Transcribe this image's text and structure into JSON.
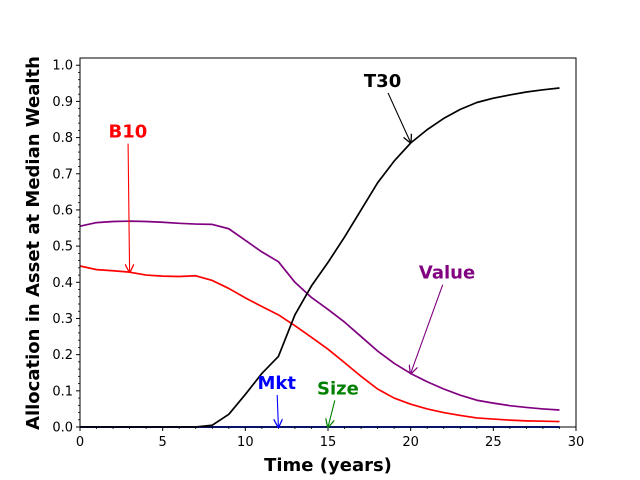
{
  "chart_data": {
    "type": "line",
    "xlabel": "Time (years)",
    "ylabel": "Allocation in Asset at Median Wealth",
    "xlim": [
      0,
      30
    ],
    "ylim": [
      0,
      1.02
    ],
    "xticks": [
      0,
      5,
      10,
      15,
      20,
      25,
      30
    ],
    "xtick_labels": [
      "0",
      "5",
      "10",
      "15",
      "20",
      "25",
      "30"
    ],
    "yticks": [
      0,
      0.1,
      0.2,
      0.3,
      0.4,
      0.5,
      0.6,
      0.7,
      0.8,
      0.9,
      1.0
    ],
    "ytick_labels": [
      "0.0",
      "0.1",
      "0.2",
      "0.3",
      "0.4",
      "0.5",
      "0.6",
      "0.7",
      "0.8",
      "0.9",
      "1.0"
    ],
    "grid": false,
    "legend": "none",
    "x": [
      0,
      1,
      2,
      3,
      4,
      5,
      6,
      7,
      8,
      9,
      10,
      11,
      12,
      13,
      14,
      15,
      16,
      17,
      18,
      19,
      20,
      21,
      22,
      23,
      24,
      25,
      26,
      27,
      28,
      29
    ],
    "series": [
      {
        "name": "T30",
        "color": "#000000",
        "values": [
          0,
          0,
          0,
          0,
          0,
          0,
          0,
          0,
          0.005,
          0.035,
          0.09,
          0.148,
          0.195,
          0.31,
          0.39,
          0.455,
          0.525,
          0.6,
          0.675,
          0.735,
          0.785,
          0.822,
          0.853,
          0.878,
          0.897,
          0.909,
          0.918,
          0.926,
          0.932,
          0.937
        ]
      },
      {
        "name": "B10",
        "color": "#ff0000",
        "values": [
          0.445,
          0.435,
          0.432,
          0.428,
          0.42,
          0.417,
          0.416,
          0.418,
          0.405,
          0.383,
          0.357,
          0.333,
          0.31,
          0.28,
          0.248,
          0.215,
          0.178,
          0.14,
          0.105,
          0.08,
          0.063,
          0.05,
          0.04,
          0.032,
          0.025,
          0.022,
          0.019,
          0.017,
          0.016,
          0.015
        ]
      },
      {
        "name": "Value",
        "color": "#800080",
        "values": [
          0.555,
          0.565,
          0.568,
          0.569,
          0.568,
          0.566,
          0.563,
          0.561,
          0.56,
          0.548,
          0.516,
          0.484,
          0.457,
          0.4,
          0.358,
          0.325,
          0.29,
          0.25,
          0.21,
          0.176,
          0.148,
          0.125,
          0.105,
          0.088,
          0.074,
          0.066,
          0.059,
          0.054,
          0.05,
          0.047
        ]
      },
      {
        "name": "Mkt",
        "color": "#0000ff",
        "values": [
          0,
          0,
          0,
          0,
          0,
          0,
          0,
          0,
          0,
          0,
          0,
          0,
          0,
          0,
          0,
          0,
          0,
          0,
          0,
          0,
          0,
          0,
          0,
          0,
          0,
          0,
          0,
          0,
          0,
          0
        ]
      },
      {
        "name": "Size",
        "color": "#008000",
        "values": [
          0,
          0,
          0,
          0,
          0,
          0,
          0,
          0,
          0,
          0,
          0,
          0,
          0,
          0,
          0,
          0,
          0,
          0,
          0,
          0,
          0,
          0,
          0,
          0,
          0,
          0,
          0,
          0,
          0,
          0
        ]
      }
    ],
    "annotations": [
      {
        "text": "T30",
        "color": "#000000",
        "text_at": [
          18.3,
          0.94
        ],
        "point_at": [
          20,
          0.786
        ]
      },
      {
        "text": "B10",
        "color": "#ff0000",
        "text_at": [
          2.9,
          0.8
        ],
        "point_at": [
          3,
          0.428
        ]
      },
      {
        "text": "Value",
        "color": "#800080",
        "text_at": [
          22.2,
          0.41
        ],
        "point_at": [
          20,
          0.148
        ]
      },
      {
        "text": "Mkt",
        "color": "#0000ff",
        "text_at": [
          11.9,
          0.105
        ],
        "point_at": [
          12,
          0.0
        ]
      },
      {
        "text": "Size",
        "color": "#008000",
        "text_at": [
          15.6,
          0.09
        ],
        "point_at": [
          15,
          0.0
        ]
      }
    ]
  }
}
